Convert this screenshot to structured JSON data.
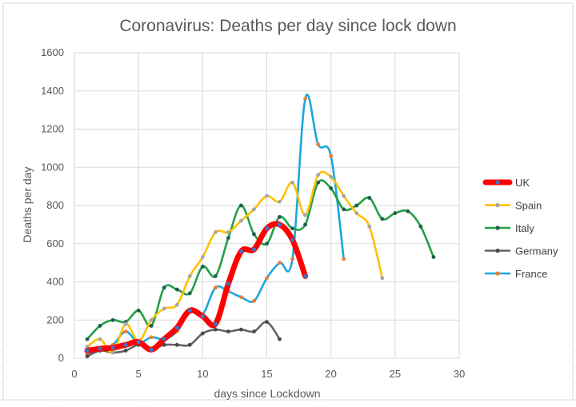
{
  "chart_data": {
    "type": "line",
    "title": "Coronavirus: Deaths per day since lock down",
    "xlabel": "days since Lockdown",
    "ylabel": "Deaths per day",
    "xlim": [
      0,
      30
    ],
    "ylim": [
      0,
      1600
    ],
    "xticks": [
      0,
      5,
      10,
      15,
      20,
      25,
      30
    ],
    "yticks": [
      0,
      200,
      400,
      600,
      800,
      1000,
      1200,
      1400,
      1600
    ],
    "grid": true,
    "smooth": true,
    "legend": "right",
    "series": [
      {
        "name": "UK",
        "color": "#ff0000",
        "marker_color": "#4472c4",
        "width": "thick",
        "x": [
          1,
          2,
          3,
          4,
          5,
          6,
          7,
          8,
          9,
          10,
          11,
          12,
          13,
          14,
          15,
          16,
          17,
          18
        ],
        "y": [
          40,
          50,
          55,
          70,
          85,
          45,
          100,
          160,
          250,
          220,
          180,
          390,
          560,
          570,
          680,
          700,
          620,
          430
        ]
      },
      {
        "name": "Spain",
        "color": "#ffc000",
        "marker_color": "#a5a5a5",
        "width": "normal",
        "x": [
          1,
          2,
          3,
          4,
          5,
          6,
          7,
          8,
          9,
          10,
          11,
          12,
          13,
          14,
          15,
          16,
          17,
          18,
          19,
          20,
          21,
          22,
          23,
          24
        ],
        "y": [
          60,
          100,
          30,
          180,
          90,
          200,
          260,
          280,
          430,
          530,
          660,
          660,
          720,
          780,
          850,
          820,
          920,
          750,
          960,
          950,
          850,
          760,
          690,
          420
        ]
      },
      {
        "name": "Italy",
        "color": "#22a045",
        "marker_color": "#1e5f4a",
        "width": "normal",
        "x": [
          1,
          2,
          3,
          4,
          5,
          6,
          7,
          8,
          9,
          10,
          11,
          12,
          13,
          14,
          15,
          16,
          17,
          18,
          19,
          20,
          21,
          22,
          23,
          24,
          25,
          26,
          27,
          28
        ],
        "y": [
          100,
          170,
          200,
          190,
          250,
          170,
          370,
          360,
          340,
          480,
          430,
          630,
          800,
          650,
          600,
          740,
          680,
          700,
          920,
          890,
          780,
          800,
          840,
          730,
          760,
          770,
          690,
          530
        ]
      },
      {
        "name": "Germany",
        "color": "#636363",
        "marker_color": "#4a4a4a",
        "width": "normal",
        "x": [
          1,
          2,
          3,
          4,
          5,
          6,
          7,
          8,
          9,
          10,
          11,
          12,
          13,
          14,
          15,
          16
        ],
        "y": [
          10,
          40,
          30,
          40,
          70,
          50,
          70,
          70,
          70,
          130,
          150,
          140,
          150,
          140,
          190,
          100
        ]
      },
      {
        "name": "France",
        "color": "#1ca6dc",
        "marker_color": "#ed7d31",
        "width": "normal",
        "x": [
          1,
          2,
          3,
          4,
          5,
          6,
          7,
          8,
          9,
          10,
          11,
          12,
          13,
          14,
          15,
          16,
          17,
          18,
          19,
          20,
          21
        ],
        "y": [
          20,
          40,
          70,
          140,
          80,
          110,
          100,
          140,
          240,
          230,
          370,
          350,
          320,
          300,
          420,
          500,
          520,
          1360,
          1120,
          1060,
          520
        ]
      }
    ]
  }
}
